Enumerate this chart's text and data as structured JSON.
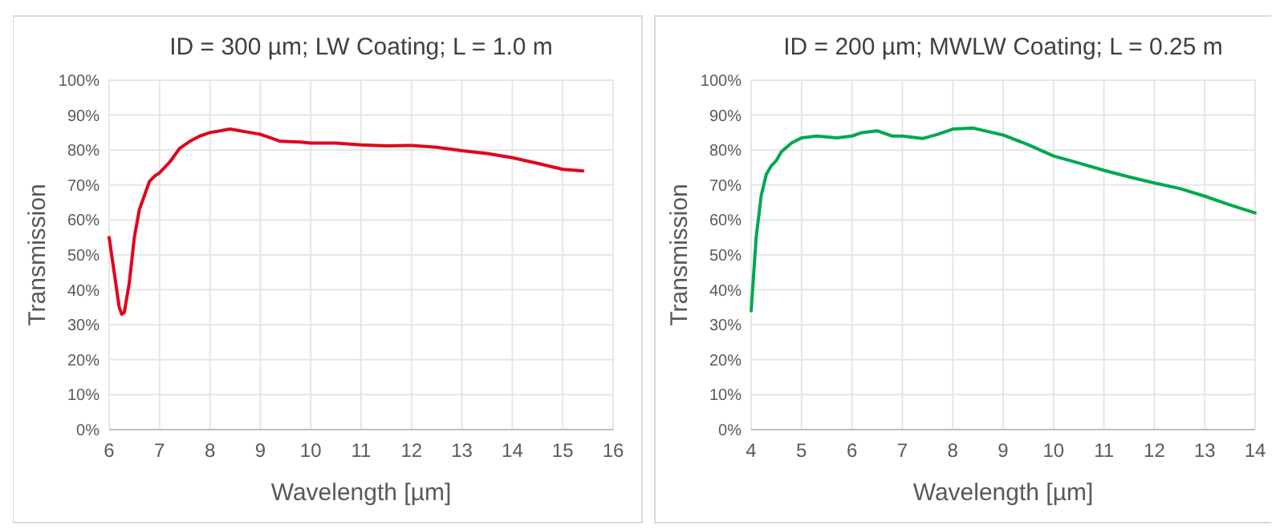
{
  "chart_data": [
    {
      "type": "line",
      "title": "ID = 300 µm; LW Coating; L = 1.0 m",
      "xlabel": "Wavelength [µm]",
      "ylabel": "Transmission",
      "series": [
        {
          "color": "#e3001b",
          "x": [
            6,
            6.1,
            6.2,
            6.25,
            6.3,
            6.4,
            6.5,
            6.6,
            6.7,
            6.8,
            6.9,
            7.0,
            7.2,
            7.4,
            7.6,
            7.8,
            8.0,
            8.2,
            8.4,
            8.6,
            8.8,
            9.0,
            9.2,
            9.4,
            9.8,
            10,
            10.5,
            11,
            11.5,
            12,
            12.5,
            13,
            13.5,
            14,
            14.5,
            15,
            15.4
          ],
          "values": [
            55,
            45,
            35,
            33,
            33.5,
            42,
            55,
            63,
            67,
            71,
            72.5,
            73.5,
            76.5,
            80.5,
            82.5,
            84,
            85,
            85.5,
            86,
            85.5,
            85,
            84.5,
            83.5,
            82.5,
            82.3,
            82,
            82,
            81.5,
            81.2,
            81.3,
            80.8,
            79.8,
            79,
            77.8,
            76.2,
            74.5,
            74
          ]
        }
      ],
      "xlim": [
        6,
        16
      ],
      "xticks": [
        6,
        7,
        8,
        9,
        10,
        11,
        12,
        13,
        14,
        15,
        16
      ],
      "ylim": [
        0,
        100
      ],
      "yticks": [
        {
          "value": 0,
          "label": "0%"
        },
        {
          "value": 10,
          "label": "10%"
        },
        {
          "value": 20,
          "label": "20%"
        },
        {
          "value": 30,
          "label": "30%"
        },
        {
          "value": 40,
          "label": "40%"
        },
        {
          "value": 50,
          "label": "50%"
        },
        {
          "value": 60,
          "label": "60%"
        },
        {
          "value": 70,
          "label": "70%"
        },
        {
          "value": 80,
          "label": "80%"
        },
        {
          "value": 90,
          "label": "90%"
        },
        {
          "value": 100,
          "label": "100%"
        }
      ],
      "grid": true,
      "marker": "none",
      "line_style": "solid"
    },
    {
      "type": "line",
      "title": "ID = 200 µm; MWLW Coating; L = 0.25 m",
      "xlabel": "Wavelength [µm]",
      "ylabel": "Transmission",
      "series": [
        {
          "color": "#00a84f",
          "x": [
            4,
            4.1,
            4.2,
            4.3,
            4.4,
            4.5,
            4.6,
            4.8,
            5,
            5.3,
            5.7,
            6,
            6.2,
            6.5,
            6.8,
            7,
            7.4,
            7.7,
            8,
            8.4,
            8.7,
            9,
            9.5,
            10,
            10.5,
            11,
            11.5,
            12,
            12.5,
            13,
            13.5,
            14
          ],
          "values": [
            34,
            55,
            67,
            73,
            75.5,
            77,
            79.5,
            82,
            83.5,
            84,
            83.5,
            84,
            85,
            85.5,
            84,
            84,
            83.3,
            84.5,
            86,
            86.3,
            85.3,
            84.3,
            81.5,
            78.3,
            76.3,
            74.2,
            72.3,
            70.6,
            69,
            66.8,
            64.3,
            62
          ]
        }
      ],
      "xlim": [
        4,
        14
      ],
      "xticks": [
        4,
        5,
        6,
        7,
        8,
        9,
        10,
        11,
        12,
        13,
        14
      ],
      "ylim": [
        0,
        100
      ],
      "yticks": [
        {
          "value": 0,
          "label": "0%"
        },
        {
          "value": 10,
          "label": "10%"
        },
        {
          "value": 20,
          "label": "20%"
        },
        {
          "value": 30,
          "label": "30%"
        },
        {
          "value": 40,
          "label": "40%"
        },
        {
          "value": 50,
          "label": "50%"
        },
        {
          "value": 60,
          "label": "60%"
        },
        {
          "value": 70,
          "label": "70%"
        },
        {
          "value": 80,
          "label": "80%"
        },
        {
          "value": 90,
          "label": "90%"
        },
        {
          "value": 100,
          "label": "100%"
        }
      ],
      "grid": true,
      "marker": "none",
      "line_style": "solid"
    }
  ]
}
